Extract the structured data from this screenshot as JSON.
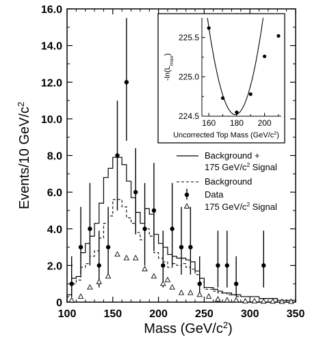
{
  "chart_data": [
    {
      "type": "histogram",
      "xlabel_main": "Mass (GeV/c",
      "xlabel_sup": "2",
      "xlabel_tail": ")",
      "ylabel_main": "Events/10 GeV/c",
      "ylabel_sup": "2",
      "xlim": [
        100,
        350
      ],
      "ylim": [
        0,
        16
      ],
      "x_ticks": [
        "100",
        "150",
        "200",
        "250",
        "300",
        "350"
      ],
      "y_ticks": [
        "0",
        "2.0",
        "4.0",
        "6.0",
        "8.0",
        "10.0",
        "12.0",
        "14.0",
        "16.0"
      ],
      "bin_edges": [
        100,
        105,
        110,
        115,
        120,
        125,
        130,
        135,
        140,
        145,
        150,
        155,
        160,
        165,
        170,
        175,
        180,
        185,
        190,
        195,
        200,
        205,
        210,
        215,
        220,
        225,
        230,
        235,
        240,
        245,
        250,
        255,
        260,
        265,
        270,
        275,
        280,
        285,
        290,
        295,
        300,
        305,
        310,
        315,
        320,
        325,
        330,
        335,
        340,
        345,
        350
      ],
      "series": [
        {
          "name": "Background + 175 GeV/c2 Signal",
          "style": "solid",
          "values": [
            0.4,
            1.3,
            1.4,
            2.7,
            3.2,
            3.6,
            4.3,
            5.4,
            6.8,
            7.3,
            7.9,
            7.9,
            7.5,
            6.6,
            5.7,
            4.9,
            4.3,
            5.1,
            4.8,
            3.7,
            3.2,
            3.0,
            2.6,
            2.5,
            2.4,
            2.4,
            2.3,
            2.2,
            1.7,
            1.3,
            0.8,
            0.8,
            0.7,
            0.6,
            0.5,
            0.5,
            0.4,
            0.4,
            0.3,
            0.3,
            0.3,
            0.3,
            0.2,
            0.2,
            0.2,
            0.2,
            0.1,
            0.1,
            0.1,
            0.1
          ]
        },
        {
          "name": "Background",
          "style": "dashed",
          "values": [
            0.3,
            1.0,
            1.2,
            1.9,
            2.1,
            2.5,
            2.8,
            3.5,
            4.3,
            4.7,
            5.6,
            5.6,
            5.2,
            4.6,
            4.3,
            3.8,
            3.4,
            4.0,
            3.6,
            2.7,
            2.4,
            2.2,
            1.9,
            2.1,
            2.0,
            2.1,
            1.9,
            1.8,
            1.5,
            1.1,
            0.7,
            0.7,
            0.6,
            0.5,
            0.5,
            0.4,
            0.4,
            0.3,
            0.3,
            0.3,
            0.3,
            0.3,
            0.2,
            0.2,
            0.2,
            0.2,
            0.1,
            0.1,
            0.1,
            0.1
          ]
        },
        {
          "name": "Data",
          "style": "points-with-errors",
          "points": [
            {
              "x": 105,
              "y": 1,
              "lo": 0.3,
              "hi": 2.5
            },
            {
              "x": 115,
              "y": 3,
              "lo": 1.5,
              "hi": 5.2
            },
            {
              "x": 125,
              "y": 4,
              "lo": 2.0,
              "hi": 6.5
            },
            {
              "x": 135,
              "y": 2,
              "lo": 0.8,
              "hi": 3.9
            },
            {
              "x": 145,
              "y": 3,
              "lo": 1.5,
              "hi": 5.2
            },
            {
              "x": 155,
              "y": 8,
              "lo": 5.0,
              "hi": 11.0
            },
            {
              "x": 165,
              "y": 12,
              "lo": 8.8,
              "hi": 15.5
            },
            {
              "x": 175,
              "y": 6,
              "lo": 3.7,
              "hi": 8.4
            },
            {
              "x": 185,
              "y": 4,
              "lo": 2.0,
              "hi": 6.5
            },
            {
              "x": 195,
              "y": 5,
              "lo": 2.8,
              "hi": 7.6
            },
            {
              "x": 205,
              "y": 2,
              "lo": 0.8,
              "hi": 3.9
            },
            {
              "x": 215,
              "y": 4,
              "lo": 2.0,
              "hi": 6.5
            },
            {
              "x": 225,
              "y": 3,
              "lo": 1.5,
              "hi": 5.2
            },
            {
              "x": 235,
              "y": 3,
              "lo": 1.5,
              "hi": 5.2
            },
            {
              "x": 245,
              "y": 1,
              "lo": 0.3,
              "hi": 2.5
            },
            {
              "x": 265,
              "y": 2,
              "lo": 0.8,
              "hi": 3.9
            },
            {
              "x": 275,
              "y": 2,
              "lo": 0.8,
              "hi": 3.9
            },
            {
              "x": 285,
              "y": 1,
              "lo": 0.3,
              "hi": 2.5
            },
            {
              "x": 315,
              "y": 2,
              "lo": 0.8,
              "hi": 3.9
            }
          ]
        },
        {
          "name": "175 GeV/c2 Signal",
          "style": "open-triangles",
          "points": [
            {
              "x": 105,
              "y": 0.1
            },
            {
              "x": 115,
              "y": 0.3
            },
            {
              "x": 125,
              "y": 0.8
            },
            {
              "x": 135,
              "y": 1.1
            },
            {
              "x": 145,
              "y": 1.4
            },
            {
              "x": 155,
              "y": 2.6
            },
            {
              "x": 165,
              "y": 2.4
            },
            {
              "x": 175,
              "y": 2.4
            },
            {
              "x": 185,
              "y": 1.8
            },
            {
              "x": 195,
              "y": 1.4
            },
            {
              "x": 205,
              "y": 1.0
            },
            {
              "x": 210,
              "y": 1.2
            },
            {
              "x": 215,
              "y": 0.8
            },
            {
              "x": 225,
              "y": 0.5
            },
            {
              "x": 235,
              "y": 0.5
            },
            {
              "x": 245,
              "y": 0.4
            },
            {
              "x": 255,
              "y": 0.3
            },
            {
              "x": 265,
              "y": 0.15
            },
            {
              "x": 275,
              "y": 0.1
            },
            {
              "x": 285,
              "y": 0.1
            },
            {
              "x": 295,
              "y": 0.05
            },
            {
              "x": 305,
              "y": 0.05
            },
            {
              "x": 315,
              "y": 0.03
            },
            {
              "x": 325,
              "y": 0.03
            },
            {
              "x": 335,
              "y": 0.02
            },
            {
              "x": 345,
              "y": 0.02
            }
          ]
        }
      ],
      "legend": [
        {
          "style": "solid",
          "line1": "Background +",
          "line2a": "175 GeV/c",
          "line2sup": "2",
          "line2b": " Signal"
        },
        {
          "style": "dashed",
          "line1": "Background"
        },
        {
          "style": "data",
          "line1": "Data"
        },
        {
          "style": "triangle",
          "line1a": "175 GeV/c",
          "line1sup": "2",
          "line1b": " Signal"
        }
      ],
      "legend_position": "right"
    },
    {
      "type": "scatter-with-fit",
      "position": "inset top-right",
      "xlabel_main": "Uncorrected Top Mass (GeV/c",
      "xlabel_sup": "2",
      "xlabel_tail": ")",
      "ylabel": "-ln(L",
      "ylabel_sub": "max",
      "ylabel_tail": ")",
      "xlim": [
        155,
        212
      ],
      "ylim": [
        224.5,
        225.75
      ],
      "x_ticks": [
        "160",
        "180",
        "200"
      ],
      "y_ticks": [
        "224.5",
        "225.0",
        "225.5"
      ],
      "points": [
        {
          "x": 160,
          "y": 225.62
        },
        {
          "x": 170,
          "y": 224.73
        },
        {
          "x": 180,
          "y": 224.55
        },
        {
          "x": 190,
          "y": 224.78
        },
        {
          "x": 200,
          "y": 225.26
        },
        {
          "x": 210,
          "y": 225.52
        }
      ],
      "fit": {
        "min_x": 179,
        "min_y": 224.52,
        "curvature": 0.00307
      }
    }
  ]
}
